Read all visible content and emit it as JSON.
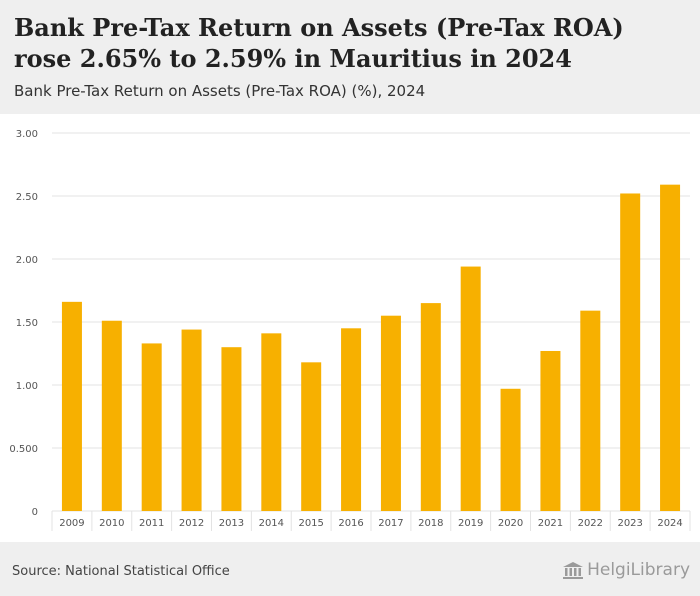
{
  "header": {
    "title": "Bank Pre-Tax Return on Assets (Pre-Tax ROA) rose 2.65% to 2.59% in Mauritius in 2024",
    "subtitle": "Bank Pre-Tax Return on Assets (Pre-Tax ROA) (%), 2024"
  },
  "footer": {
    "source": "Source: National Statistical Office",
    "logo_text": "HelgiLibrary"
  },
  "colors": {
    "bar": "#f7b000",
    "grid": "#e3e3e3",
    "axis_text": "#555555"
  },
  "chart_data": {
    "type": "bar",
    "title": "Bank Pre-Tax Return on Assets (Pre-Tax ROA) rose 2.65% to 2.59% in Mauritius in 2024",
    "subtitle": "Bank Pre-Tax Return on Assets (Pre-Tax ROA) (%), 2024",
    "xlabel": "",
    "ylabel": "",
    "categories": [
      "2009",
      "2010",
      "2011",
      "2012",
      "2013",
      "2014",
      "2015",
      "2016",
      "2017",
      "2018",
      "2019",
      "2020",
      "2021",
      "2022",
      "2023",
      "2024"
    ],
    "values": [
      1.66,
      1.51,
      1.33,
      1.44,
      1.3,
      1.41,
      1.18,
      1.45,
      1.55,
      1.65,
      1.94,
      0.97,
      1.27,
      1.59,
      2.52,
      2.59
    ],
    "ylim": [
      0,
      3.0
    ],
    "yticks": [
      0,
      0.5,
      1.0,
      1.5,
      2.0,
      2.5,
      3.0
    ],
    "ytick_labels": [
      "0",
      "0.500",
      "1.00",
      "1.50",
      "2.00",
      "2.50",
      "3.00"
    ],
    "grid": true
  }
}
